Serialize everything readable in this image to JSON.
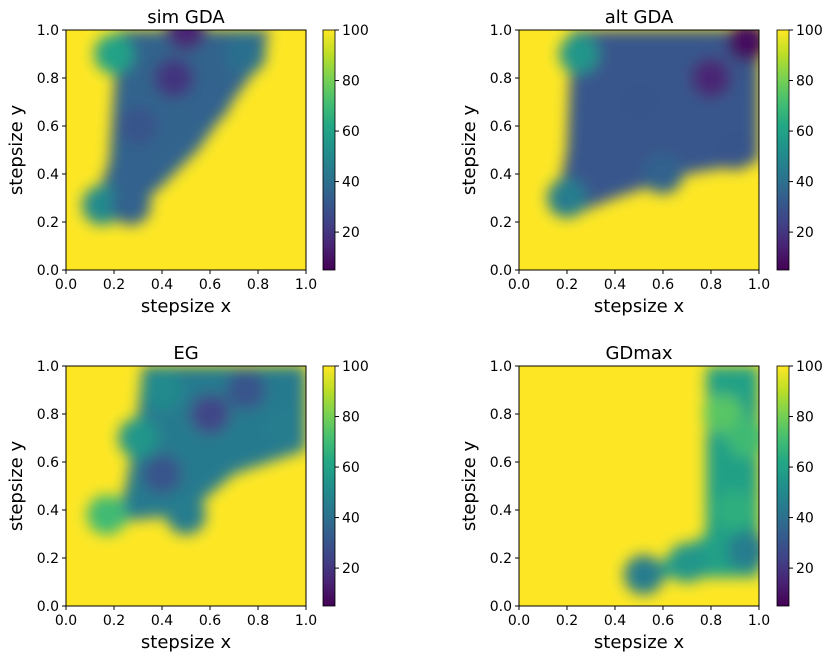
{
  "chart_data": [
    {
      "type": "heatmap",
      "title": "sim GDA",
      "xlabel": "stepsize x",
      "ylabel": "stepsize y",
      "xlim": [
        0.0,
        1.0
      ],
      "ylim": [
        0.0,
        1.0
      ],
      "xticks": [
        "0.0",
        "0.2",
        "0.4",
        "0.6",
        "0.8",
        "1.0"
      ],
      "yticks": [
        "0.0",
        "0.2",
        "0.4",
        "0.6",
        "0.8",
        "1.0"
      ],
      "colorbar": {
        "min": 5,
        "max": 100,
        "ticks": [
          "20",
          "40",
          "60",
          "80",
          "100"
        ],
        "colormap": "viridis"
      },
      "background_value": 100,
      "region": {
        "description_points_boundary": [
          [
            0.1,
            0.22
          ],
          [
            0.18,
            0.45
          ],
          [
            0.2,
            0.75
          ],
          [
            0.22,
            1.0
          ],
          [
            0.85,
            1.0
          ],
          [
            0.8,
            0.85
          ],
          [
            0.55,
            0.5
          ],
          [
            0.4,
            0.35
          ],
          [
            0.25,
            0.22
          ]
        ],
        "values_sample": [
          [
            0.3,
            0.6,
            30
          ],
          [
            0.45,
            0.8,
            20
          ],
          [
            0.5,
            1.0,
            15
          ],
          [
            0.3,
            0.4,
            35
          ],
          [
            0.15,
            0.27,
            50
          ],
          [
            0.27,
            0.27,
            35
          ],
          [
            0.6,
            0.7,
            35
          ],
          [
            0.75,
            0.9,
            40
          ],
          [
            0.2,
            0.9,
            60
          ]
        ]
      }
    },
    {
      "type": "heatmap",
      "title": "alt GDA",
      "xlabel": "stepsize x",
      "ylabel": "stepsize y",
      "xlim": [
        0.0,
        1.0
      ],
      "ylim": [
        0.0,
        1.0
      ],
      "xticks": [
        "0.0",
        "0.2",
        "0.4",
        "0.6",
        "0.8",
        "1.0"
      ],
      "yticks": [
        "0.0",
        "0.2",
        "0.4",
        "0.6",
        "0.8",
        "1.0"
      ],
      "colorbar": {
        "min": 5,
        "max": 100,
        "ticks": [
          "20",
          "40",
          "60",
          "80",
          "100"
        ],
        "colormap": "viridis"
      },
      "background_value": 100,
      "region": {
        "description_points_boundary": [
          [
            0.15,
            0.25
          ],
          [
            0.2,
            0.5
          ],
          [
            0.22,
            1.0
          ],
          [
            1.0,
            1.0
          ],
          [
            1.0,
            0.45
          ],
          [
            0.7,
            0.4
          ],
          [
            0.4,
            0.3
          ],
          [
            0.2,
            0.22
          ]
        ],
        "values_sample": [
          [
            0.25,
            0.9,
            55
          ],
          [
            0.5,
            0.7,
            30
          ],
          [
            0.8,
            0.8,
            15
          ],
          [
            0.95,
            0.95,
            8
          ],
          [
            0.6,
            0.4,
            35
          ],
          [
            0.9,
            0.5,
            30
          ],
          [
            0.2,
            0.3,
            45
          ]
        ]
      }
    },
    {
      "type": "heatmap",
      "title": "EG",
      "xlabel": "stepsize x",
      "ylabel": "stepsize y",
      "xlim": [
        0.0,
        1.0
      ],
      "ylim": [
        0.0,
        1.0
      ],
      "xticks": [
        "0.0",
        "0.2",
        "0.4",
        "0.6",
        "0.8",
        "1.0"
      ],
      "yticks": [
        "0.0",
        "0.2",
        "0.4",
        "0.6",
        "0.8",
        "1.0"
      ],
      "colorbar": {
        "min": 5,
        "max": 100,
        "ticks": [
          "20",
          "40",
          "60",
          "80",
          "100"
        ],
        "colormap": "viridis"
      },
      "background_value": 100,
      "region": {
        "description_points_boundary": [
          [
            0.25,
            0.5
          ],
          [
            0.3,
            0.8
          ],
          [
            0.32,
            1.0
          ],
          [
            1.0,
            1.0
          ],
          [
            1.0,
            0.65
          ],
          [
            0.7,
            0.55
          ],
          [
            0.5,
            0.38
          ],
          [
            0.2,
            0.35
          ]
        ],
        "values_sample": [
          [
            0.4,
            0.9,
            50
          ],
          [
            0.6,
            0.8,
            25
          ],
          [
            0.75,
            0.9,
            30
          ],
          [
            0.9,
            0.75,
            45
          ],
          [
            0.4,
            0.55,
            30
          ],
          [
            0.5,
            0.38,
            45
          ],
          [
            0.17,
            0.38,
            70
          ],
          [
            0.3,
            0.7,
            55
          ]
        ]
      }
    },
    {
      "type": "heatmap",
      "title": "GDmax",
      "xlabel": "stepsize x",
      "ylabel": "stepsize y",
      "xlim": [
        0.0,
        1.0
      ],
      "ylim": [
        0.0,
        1.0
      ],
      "xticks": [
        "0.0",
        "0.2",
        "0.4",
        "0.6",
        "0.8",
        "1.0"
      ],
      "yticks": [
        "0.0",
        "0.2",
        "0.4",
        "0.6",
        "0.8",
        "1.0"
      ],
      "colorbar": {
        "min": 5,
        "max": 100,
        "ticks": [
          "20",
          "40",
          "60",
          "80",
          "100"
        ],
        "colormap": "viridis"
      },
      "background_value": 100,
      "region": {
        "description_points_boundary": [
          [
            0.78,
            1.0
          ],
          [
            0.78,
            0.3
          ],
          [
            0.5,
            0.12
          ],
          [
            1.0,
            0.12
          ],
          [
            1.0,
            1.0
          ]
        ],
        "values_sample": [
          [
            0.85,
            0.8,
            75
          ],
          [
            0.95,
            0.7,
            70
          ],
          [
            0.9,
            0.4,
            65
          ],
          [
            0.52,
            0.13,
            45
          ],
          [
            0.7,
            0.18,
            55
          ],
          [
            0.95,
            0.23,
            45
          ]
        ]
      }
    }
  ]
}
